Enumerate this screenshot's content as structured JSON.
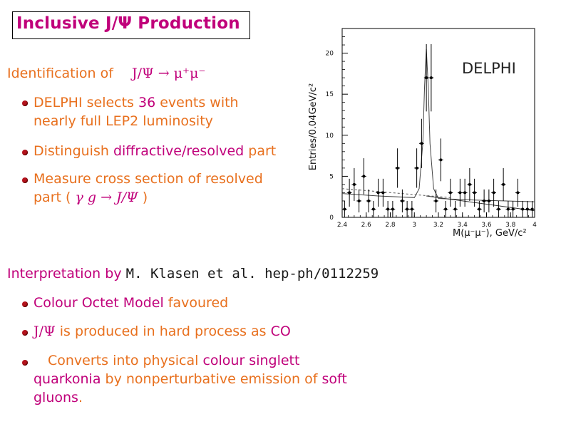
{
  "slide": {
    "title": "Inclusive J/Ψ Production",
    "identification": {
      "label": "Identification of",
      "decay": "J/Ψ → μ⁺μ⁻"
    },
    "bullets_top": [
      {
        "line1_a": "DELPHI selects ",
        "line1_b": "36",
        "line1_c": " events with",
        "line2": "nearly full LEP2 luminosity"
      },
      {
        "a": "Distinguish ",
        "b": "diffractive/resolved",
        "c": " part"
      },
      {
        "line1": "Measure cross section of resolved",
        "line2_a": "part ( ",
        "line2_b": "γ g → J/Ψ",
        "line2_c": " )"
      }
    ],
    "interpretation": {
      "label": "Interpretation by",
      "reference": "M. Klasen et al. hep-ph/0112259"
    },
    "bullets_bottom": [
      {
        "a": "Colour Octet Model",
        "b": " favoured"
      },
      {
        "a": "J/Ψ",
        "b": " is produced in hard process as ",
        "c": "CO"
      },
      {
        "a": "Converts into physical ",
        "b": "colour singlett",
        "c": "quarkonia",
        "d": " by nonperturbative emission of ",
        "e": "soft",
        "f": "gluons",
        "g": "."
      }
    ]
  },
  "chart_data": {
    "type": "scatter",
    "title": "DELPHI",
    "xlabel": "M(μ⁻μ⁻), GeV/c²",
    "ylabel": "Entries/0.04GeV/c²",
    "xlim": [
      2.4,
      4.0
    ],
    "ylim": [
      0,
      23
    ],
    "xticks": [
      "2.4",
      "2.6",
      "2.8",
      "3",
      "3.2",
      "3.4",
      "3.6",
      "3.8",
      "4"
    ],
    "yticks": [
      "0",
      "5",
      "10",
      "15",
      "20"
    ],
    "points": [
      {
        "x": 2.42,
        "y": 1,
        "e": 1.0
      },
      {
        "x": 2.46,
        "y": 3,
        "e": 1.7
      },
      {
        "x": 2.5,
        "y": 4,
        "e": 2.0
      },
      {
        "x": 2.54,
        "y": 2,
        "e": 1.4
      },
      {
        "x": 2.58,
        "y": 5,
        "e": 2.2
      },
      {
        "x": 2.62,
        "y": 2,
        "e": 1.4
      },
      {
        "x": 2.66,
        "y": 1,
        "e": 1.0
      },
      {
        "x": 2.7,
        "y": 3,
        "e": 1.7
      },
      {
        "x": 2.74,
        "y": 3,
        "e": 1.7
      },
      {
        "x": 2.78,
        "y": 1,
        "e": 1.0
      },
      {
        "x": 2.82,
        "y": 1,
        "e": 1.0
      },
      {
        "x": 2.86,
        "y": 6,
        "e": 2.4
      },
      {
        "x": 2.9,
        "y": 2,
        "e": 1.4
      },
      {
        "x": 2.94,
        "y": 1,
        "e": 1.0
      },
      {
        "x": 2.98,
        "y": 1,
        "e": 1.0
      },
      {
        "x": 3.02,
        "y": 6,
        "e": 2.4
      },
      {
        "x": 3.06,
        "y": 9,
        "e": 3.0
      },
      {
        "x": 3.1,
        "y": 17,
        "e": 4.1
      },
      {
        "x": 3.14,
        "y": 17,
        "e": 4.1
      },
      {
        "x": 3.18,
        "y": 2,
        "e": 1.4
      },
      {
        "x": 3.22,
        "y": 7,
        "e": 2.6
      },
      {
        "x": 3.26,
        "y": 1,
        "e": 1.0
      },
      {
        "x": 3.3,
        "y": 3,
        "e": 1.7
      },
      {
        "x": 3.34,
        "y": 1,
        "e": 1.0
      },
      {
        "x": 3.38,
        "y": 3,
        "e": 1.7
      },
      {
        "x": 3.42,
        "y": 3,
        "e": 1.7
      },
      {
        "x": 3.46,
        "y": 4,
        "e": 2.0
      },
      {
        "x": 3.5,
        "y": 3,
        "e": 1.7
      },
      {
        "x": 3.54,
        "y": 1,
        "e": 1.0
      },
      {
        "x": 3.58,
        "y": 2,
        "e": 1.4
      },
      {
        "x": 3.62,
        "y": 2,
        "e": 1.4
      },
      {
        "x": 3.66,
        "y": 3,
        "e": 1.7
      },
      {
        "x": 3.7,
        "y": 1,
        "e": 1.0
      },
      {
        "x": 3.74,
        "y": 4,
        "e": 2.0
      },
      {
        "x": 3.78,
        "y": 1,
        "e": 1.0
      },
      {
        "x": 3.82,
        "y": 1,
        "e": 1.0
      },
      {
        "x": 3.86,
        "y": 3,
        "e": 1.7
      },
      {
        "x": 3.9,
        "y": 1,
        "e": 1.0
      },
      {
        "x": 3.94,
        "y": 1,
        "e": 1.0
      },
      {
        "x": 3.98,
        "y": 1,
        "e": 1.0
      }
    ],
    "fit_curve": [
      [
        2.4,
        2.9
      ],
      [
        2.7,
        2.6
      ],
      [
        3.0,
        2.4
      ],
      [
        3.04,
        3.5
      ],
      [
        3.07,
        9
      ],
      [
        3.085,
        16
      ],
      [
        3.1,
        20.5
      ],
      [
        3.115,
        16
      ],
      [
        3.13,
        9
      ],
      [
        3.16,
        3.5
      ],
      [
        3.2,
        2.3
      ],
      [
        3.5,
        2.1
      ],
      [
        4.0,
        1.9
      ]
    ],
    "background_dashed": [
      [
        2.4,
        3.5
      ],
      [
        3.3,
        2.4
      ]
    ],
    "background_solid": [
      [
        3.1,
        2.6
      ],
      [
        4.0,
        0.8
      ]
    ],
    "grid": false
  }
}
